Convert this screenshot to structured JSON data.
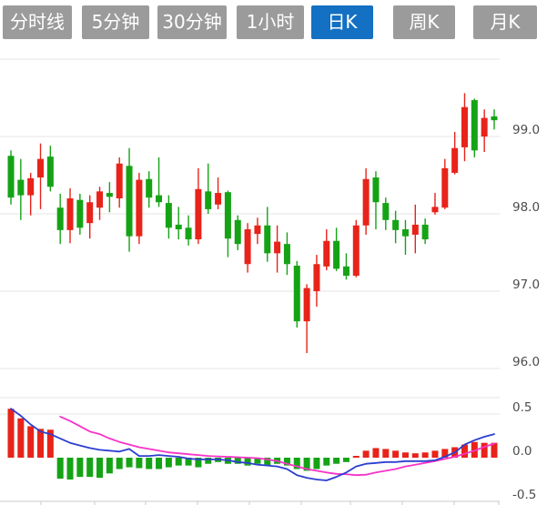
{
  "tabs": {
    "active_index": 4,
    "items": [
      {
        "label": "分时线"
      },
      {
        "label": "5分钟"
      },
      {
        "label": "30分钟"
      },
      {
        "label": "1小时"
      },
      {
        "label": "日K"
      },
      {
        "label": "周K"
      },
      {
        "label": "月K"
      }
    ]
  },
  "colors": {
    "up": "#e8231a",
    "down": "#15a315",
    "dif_line": "#2c3ed0",
    "dea_line": "#f832c8",
    "grid": "#e4e4e4",
    "axis_line": "#c9c9c9",
    "axis_text": "#4c4c4c",
    "tab_bg": "#9b9b9b",
    "tab_active_bg": "#1370c2",
    "tab_text": "#ffffff"
  },
  "chart_data": {
    "type": "candlestick",
    "title": "",
    "convention": "red = up, green = down",
    "legend_position": "none",
    "grid": "horizontal-only",
    "price_panel": {
      "ylim": [
        95.6,
        100.0
      ],
      "yticks": [
        {
          "value": 100.0,
          "label": ""
        },
        {
          "value": 99.0,
          "label": "99.0"
        },
        {
          "value": 98.0,
          "label": "98.0"
        },
        {
          "value": 97.0,
          "label": "97.0"
        },
        {
          "value": 96.0,
          "label": "96.0"
        }
      ],
      "columns": [
        "open",
        "high",
        "low",
        "close"
      ],
      "candles": [
        [
          98.75,
          98.82,
          98.12,
          98.21
        ],
        [
          98.44,
          98.71,
          97.92,
          98.24
        ],
        [
          98.24,
          98.53,
          97.98,
          98.46
        ],
        [
          98.47,
          98.91,
          98.06,
          98.71
        ],
        [
          98.74,
          98.88,
          98.29,
          98.35
        ],
        [
          98.08,
          98.26,
          97.61,
          97.79
        ],
        [
          97.79,
          98.33,
          97.62,
          98.2
        ],
        [
          98.18,
          98.26,
          97.73,
          97.82
        ],
        [
          97.88,
          98.24,
          97.68,
          98.15
        ],
        [
          98.08,
          98.35,
          97.92,
          98.29
        ],
        [
          98.27,
          98.41,
          98.02,
          98.22
        ],
        [
          98.2,
          98.73,
          98.08,
          98.65
        ],
        [
          98.62,
          98.85,
          97.51,
          97.71
        ],
        [
          97.71,
          98.53,
          97.61,
          98.44
        ],
        [
          98.45,
          98.55,
          98.08,
          98.21
        ],
        [
          98.24,
          98.73,
          98.09,
          98.15
        ],
        [
          98.14,
          98.24,
          97.68,
          97.82
        ],
        [
          97.86,
          98.09,
          97.67,
          97.8
        ],
        [
          97.82,
          97.98,
          97.59,
          97.67
        ],
        [
          97.67,
          98.59,
          97.61,
          98.32
        ],
        [
          98.29,
          98.65,
          98.0,
          98.06
        ],
        [
          98.12,
          98.47,
          98.06,
          98.27
        ],
        [
          98.28,
          98.3,
          97.44,
          97.68
        ],
        [
          97.92,
          97.98,
          97.53,
          97.61
        ],
        [
          97.35,
          97.88,
          97.24,
          97.8
        ],
        [
          97.74,
          97.95,
          97.61,
          97.85
        ],
        [
          97.85,
          98.09,
          97.38,
          97.49
        ],
        [
          97.49,
          97.85,
          97.24,
          97.64
        ],
        [
          97.61,
          97.76,
          97.21,
          97.35
        ],
        [
          97.33,
          97.39,
          96.53,
          96.61
        ],
        [
          96.61,
          97.09,
          96.2,
          97.04
        ],
        [
          97.0,
          97.47,
          96.8,
          97.35
        ],
        [
          97.32,
          97.8,
          97.27,
          97.65
        ],
        [
          97.65,
          97.82,
          97.26,
          97.29
        ],
        [
          97.32,
          97.49,
          97.15,
          97.2
        ],
        [
          97.2,
          97.92,
          97.18,
          97.85
        ],
        [
          97.85,
          98.59,
          97.73,
          98.45
        ],
        [
          98.47,
          98.55,
          97.8,
          98.15
        ],
        [
          98.14,
          98.21,
          97.79,
          97.92
        ],
        [
          97.92,
          98.04,
          97.62,
          97.79
        ],
        [
          97.8,
          97.92,
          97.47,
          97.71
        ],
        [
          97.73,
          98.12,
          97.49,
          97.86
        ],
        [
          97.86,
          97.94,
          97.61,
          97.67
        ],
        [
          98.02,
          98.27,
          97.99,
          98.09
        ],
        [
          98.08,
          98.71,
          98.06,
          98.59
        ],
        [
          98.53,
          99.06,
          98.51,
          98.85
        ],
        [
          98.86,
          99.56,
          98.68,
          99.38
        ],
        [
          99.47,
          99.49,
          98.73,
          98.82
        ],
        [
          99.0,
          99.35,
          98.8,
          99.24
        ],
        [
          99.26,
          99.35,
          99.09,
          99.21
        ]
      ]
    },
    "macd_panel": {
      "ylim": [
        -0.5,
        0.6
      ],
      "yticks": [
        {
          "value": 0.5,
          "label": "0.5",
          "line": "grid"
        },
        {
          "value": 0.0,
          "label": "0.0",
          "line": "none"
        },
        {
          "value": -0.5,
          "label": "-0.5",
          "line": "axis"
        }
      ],
      "histogram": [
        0.56,
        0.45,
        0.36,
        0.33,
        0.32,
        -0.24,
        -0.25,
        -0.22,
        -0.22,
        -0.23,
        -0.18,
        -0.13,
        -0.11,
        -0.12,
        -0.13,
        -0.13,
        -0.11,
        -0.09,
        -0.09,
        -0.11,
        -0.07,
        -0.05,
        -0.07,
        -0.07,
        -0.09,
        -0.07,
        -0.09,
        -0.07,
        -0.09,
        -0.13,
        -0.15,
        -0.13,
        -0.09,
        -0.07,
        -0.05,
        0.02,
        0.08,
        0.11,
        0.1,
        0.08,
        0.06,
        0.05,
        0.06,
        0.08,
        0.1,
        0.12,
        0.15,
        0.18,
        0.17,
        0.17
      ],
      "dif": {
        "start_index": 0,
        "values": [
          0.56,
          0.48,
          0.38,
          0.3,
          0.27,
          0.22,
          0.17,
          0.14,
          0.11,
          0.09,
          0.08,
          0.07,
          0.1,
          0.02,
          0.02,
          0.03,
          0.02,
          0.01,
          -0.01,
          -0.02,
          -0.02,
          -0.02,
          -0.03,
          -0.05,
          -0.06,
          -0.08,
          -0.09,
          -0.1,
          -0.13,
          -0.2,
          -0.23,
          -0.25,
          -0.26,
          -0.22,
          -0.17,
          -0.1,
          -0.07,
          -0.06,
          -0.05,
          -0.05,
          -0.04,
          -0.04,
          -0.04,
          -0.03,
          0.01,
          0.06,
          0.15,
          0.2,
          0.24,
          0.27
        ]
      },
      "dea": {
        "start_index": 5,
        "values": [
          0.47,
          0.42,
          0.36,
          0.3,
          0.27,
          0.22,
          0.18,
          0.15,
          0.12,
          0.1,
          0.08,
          0.06,
          0.05,
          0.04,
          0.03,
          0.02,
          0.015,
          0.01,
          0.005,
          0.0,
          -0.005,
          -0.02,
          -0.04,
          -0.07,
          -0.1,
          -0.13,
          -0.15,
          -0.17,
          -0.185,
          -0.19,
          -0.2,
          -0.195,
          -0.17,
          -0.15,
          -0.13,
          -0.1,
          -0.08,
          -0.06,
          -0.04,
          -0.015,
          0.01,
          0.045,
          0.08,
          0.125,
          0.16
        ]
      },
      "x_ticks": [
        45,
        104,
        160,
        217,
        274,
        331,
        385,
        442,
        499,
        548
      ]
    }
  }
}
